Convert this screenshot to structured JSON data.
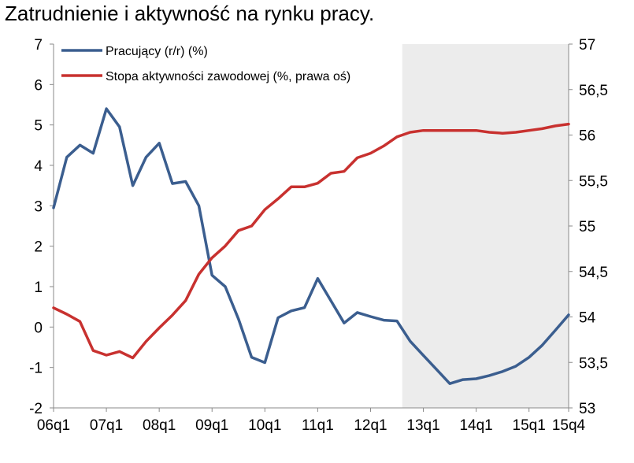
{
  "chart_data": {
    "type": "line",
    "title": "Zatrudnienie i aktywność na rynku pracy.",
    "x_tick_labels": [
      "06q1",
      "07q1",
      "08q1",
      "09q1",
      "10q1",
      "11q1",
      "12q1",
      "13q1",
      "14q1",
      "15q1",
      "15q4"
    ],
    "x": [
      "06q1",
      "06q2",
      "06q3",
      "06q4",
      "07q1",
      "07q2",
      "07q3",
      "07q4",
      "08q1",
      "08q2",
      "08q3",
      "08q4",
      "09q1",
      "09q2",
      "09q3",
      "09q4",
      "10q1",
      "10q2",
      "10q3",
      "10q4",
      "11q1",
      "11q2",
      "11q3",
      "11q4",
      "12q1",
      "12q2",
      "12q3",
      "12q4",
      "13q1",
      "13q2",
      "13q3",
      "13q4",
      "14q1",
      "14q2",
      "14q3",
      "14q4",
      "15q1",
      "15q2",
      "15q3",
      "15q4"
    ],
    "forecast_shading": {
      "from": "12q4",
      "to": "15q4",
      "color": "#ececec"
    },
    "left_axis": {
      "ylim": [
        -2,
        7
      ],
      "ticks": [
        "-2",
        "-1",
        "0",
        "1",
        "2",
        "3",
        "4",
        "5",
        "6",
        "7"
      ]
    },
    "right_axis": {
      "ylim": [
        53,
        57
      ],
      "ticks": [
        "53",
        "53,5",
        "54",
        "54,5",
        "55",
        "55,5",
        "56",
        "56,5",
        "57"
      ]
    },
    "legend_position": "top-left",
    "series": [
      {
        "name": "Pracujący (r/r) (%)",
        "axis": "left",
        "color": "#3b5e8f",
        "values": [
          2.95,
          4.2,
          4.5,
          4.3,
          5.4,
          4.95,
          3.5,
          4.2,
          4.55,
          3.55,
          3.6,
          3.0,
          1.28,
          1.0,
          0.2,
          -0.75,
          -0.88,
          0.23,
          0.4,
          0.48,
          1.2,
          0.65,
          0.1,
          0.36,
          0.26,
          0.17,
          0.15,
          -0.35,
          -0.7,
          -1.05,
          -1.4,
          -1.3,
          -1.28,
          -1.2,
          -1.1,
          -0.97,
          -0.75,
          -0.45,
          -0.08,
          0.3
        ]
      },
      {
        "name": "Stopa aktywności zawodowej (%, prawa oś)",
        "axis": "right",
        "color": "#c8312f",
        "values": [
          54.1,
          54.03,
          53.95,
          53.63,
          53.58,
          53.62,
          53.55,
          53.73,
          53.88,
          54.02,
          54.18,
          54.47,
          54.65,
          54.78,
          54.95,
          55.0,
          55.18,
          55.3,
          55.43,
          55.43,
          55.47,
          55.58,
          55.6,
          55.75,
          55.8,
          55.88,
          55.98,
          56.03,
          56.05,
          56.05,
          56.05,
          56.05,
          56.05,
          56.03,
          56.02,
          56.03,
          56.05,
          56.07,
          56.1,
          56.12
        ]
      }
    ]
  }
}
